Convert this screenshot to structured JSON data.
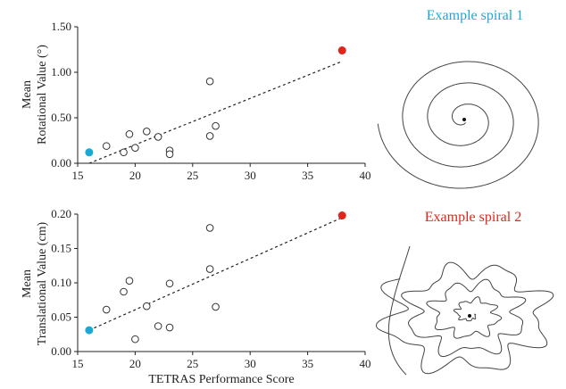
{
  "colors": {
    "highlight_blue": "#1aa9d6",
    "highlight_red": "#e3241b",
    "axis": "#222222",
    "point_stroke": "#333333"
  },
  "x_axis": {
    "label": "TETRAS Performance Score",
    "lim": [
      15,
      40
    ],
    "ticks": [
      "15",
      "20",
      "25",
      "30",
      "35",
      "40"
    ]
  },
  "spirals": [
    {
      "title": "Example spiral 1",
      "color": "#1aa9d6"
    },
    {
      "title": "Example spiral 2",
      "color": "#e3241b"
    }
  ],
  "chart_data": [
    {
      "type": "scatter",
      "ylabel_line1": "Mean",
      "ylabel_line2": "Rotational Value (°)",
      "xlabel": "",
      "xlim": [
        15,
        40
      ],
      "ylim": [
        0,
        1.5
      ],
      "yticks": [
        "0.00",
        "0.50",
        "1.00",
        "1.50"
      ],
      "x": [
        17.5,
        19,
        19.5,
        20,
        21,
        22,
        23,
        23,
        26.5,
        26.5,
        27
      ],
      "y": [
        0.19,
        0.12,
        0.32,
        0.17,
        0.35,
        0.29,
        0.14,
        0.1,
        0.3,
        0.9,
        0.41
      ],
      "highlight": [
        {
          "x": 16,
          "y": 0.12,
          "color": "#1aa9d6"
        },
        {
          "x": 38,
          "y": 1.24,
          "color": "#e3241b"
        }
      ],
      "trendline": {
        "x": [
          16,
          38
        ],
        "y": [
          0.0,
          1.12
        ]
      }
    },
    {
      "type": "scatter",
      "ylabel_line1": "Mean",
      "ylabel_line2": "Translational Value (cm)",
      "xlabel": "TETRAS Performance Score",
      "xlim": [
        15,
        40
      ],
      "ylim": [
        0,
        0.2
      ],
      "yticks": [
        "0.00",
        "0.05",
        "0.10",
        "0.15",
        "0.20"
      ],
      "x": [
        17.5,
        19,
        19.5,
        20,
        21,
        22,
        23,
        23,
        26.5,
        26.5,
        27
      ],
      "y": [
        0.061,
        0.087,
        0.103,
        0.018,
        0.066,
        0.037,
        0.099,
        0.035,
        0.18,
        0.12,
        0.065
      ],
      "highlight": [
        {
          "x": 16,
          "y": 0.031,
          "color": "#1aa9d6"
        },
        {
          "x": 38,
          "y": 0.198,
          "color": "#e3241b"
        }
      ],
      "trendline": {
        "x": [
          16,
          38
        ],
        "y": [
          0.031,
          0.195
        ]
      }
    }
  ]
}
